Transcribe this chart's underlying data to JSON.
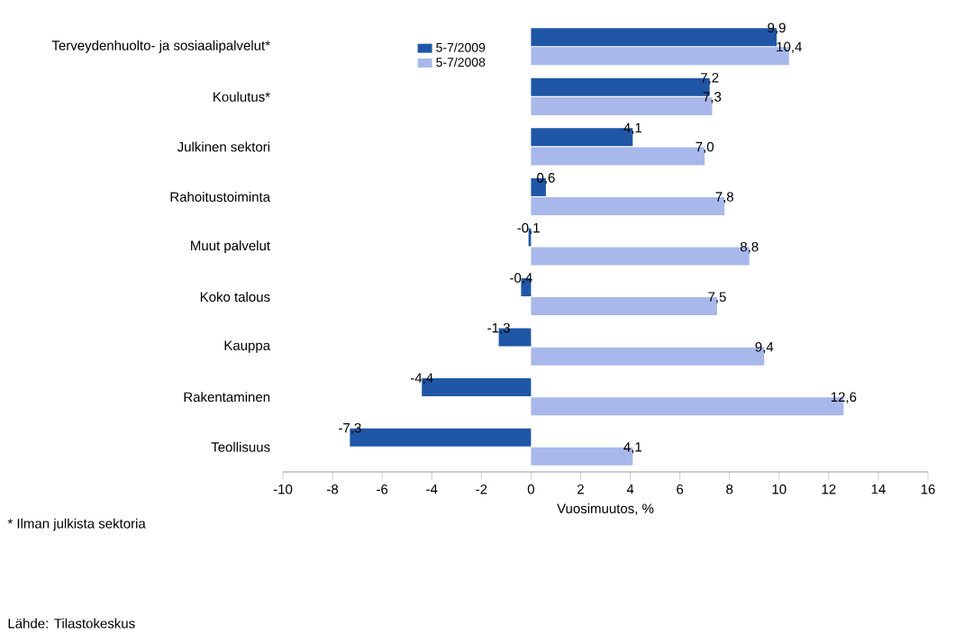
{
  "chart_data": {
    "type": "bar",
    "orientation": "horizontal",
    "categories": [
      "Terveydenhuolto- ja sosiaalipalvelut*",
      "Koulutus*",
      "Julkinen sektori",
      "Rahoitustoiminta",
      "Muut palvelut",
      "Koko talous",
      "Kauppa",
      "Rakentaminen",
      "Teollisuus"
    ],
    "series": [
      {
        "name": "5-7/2009",
        "color": "#1f57a6",
        "values": [
          9.9,
          7.2,
          4.1,
          0.6,
          -0.1,
          -0.4,
          -1.3,
          -4.4,
          -7.3
        ],
        "value_labels": [
          "9,9",
          "7,2",
          "4,1",
          "0,6",
          "-0,1",
          "-0,4",
          "-1,3",
          "-4,4",
          "-7,3"
        ]
      },
      {
        "name": "5-7/2008",
        "color": "#a8b8ea",
        "values": [
          10.4,
          7.3,
          7.0,
          7.8,
          8.8,
          7.5,
          9.4,
          12.6,
          4.1
        ],
        "value_labels": [
          "10,4",
          "7,3",
          "7,0",
          "7,8",
          "8,8",
          "7,5",
          "9,4",
          "12,6",
          "4,1"
        ]
      }
    ],
    "xlim": [
      -10,
      16
    ],
    "xticks": [
      -10,
      -8,
      -6,
      -4,
      -2,
      0,
      2,
      4,
      6,
      8,
      10,
      12,
      14,
      16
    ],
    "xlabel": "Vuosimuutos, %",
    "legend": "top",
    "grid": false,
    "annotations": [
      "* Ilman julkista sektoria",
      "Lähde: Tilastokeskus"
    ]
  }
}
